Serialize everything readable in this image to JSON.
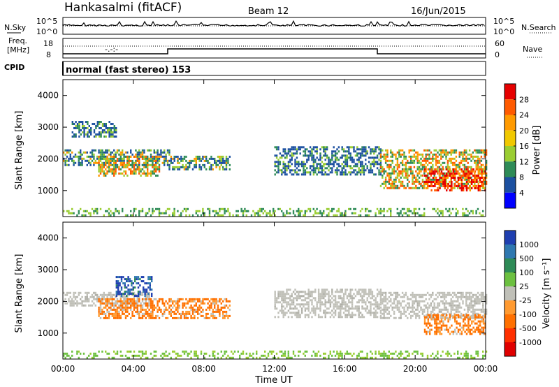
{
  "header": {
    "station": "Hankasalmi (fitACF)",
    "beam": "Beam 12",
    "date": "16/Jun/2015"
  },
  "panels": {
    "noise": {
      "left_label": "N.Sky",
      "right_label": "N.Search",
      "left_ticks": [
        "10^5",
        "10^0"
      ],
      "right_ticks": [
        "10^5",
        "10^0"
      ]
    },
    "freq": {
      "left_label_line1": "Freq.",
      "left_label_line2": "[MHz]",
      "left_ticks": [
        "18",
        "8"
      ],
      "right_label": "Nave",
      "right_ticks": [
        "60",
        "0"
      ]
    },
    "cpid": {
      "label": "CPID",
      "text": "normal (fast stereo) 153"
    }
  },
  "power_colorbar": {
    "label": "Power [dB]",
    "ticks": [
      "28",
      "24",
      "20",
      "16",
      "12",
      "8",
      "4"
    ],
    "colors": [
      "#e60000",
      "#ff5a00",
      "#ff9a00",
      "#f0c800",
      "#9acd32",
      "#2e8b57",
      "#1c50a0",
      "#0000ff"
    ]
  },
  "velocity_colorbar": {
    "label": "Velocity  [m s⁻¹]",
    "ticks": [
      "1000",
      "500",
      "100",
      "25",
      "-25",
      "-100",
      "-500",
      "-1000"
    ],
    "colors": [
      "#1f3fb0",
      "#2f78b0",
      "#2e8b57",
      "#6cc040",
      "#c0c0b8",
      "#ff9a30",
      "#ff7000",
      "#ff3000",
      "#e00000"
    ]
  },
  "chart_data": [
    {
      "type": "heatmap",
      "title": "",
      "xlabel": "",
      "ylabel": "Slant Range [km]",
      "ylim": [
        180,
        4500
      ],
      "yticks": [
        1000,
        2000,
        3000,
        4000
      ],
      "xlim": [
        0,
        24
      ],
      "variable": "Power [dB]",
      "echo_bands": [
        {
          "t0": 0.0,
          "t1": 6.0,
          "r0": 1800,
          "r1": 2300,
          "level": "medium"
        },
        {
          "t0": 2.0,
          "t1": 5.5,
          "r0": 1500,
          "r1": 2100,
          "level": "high"
        },
        {
          "t0": 0.5,
          "t1": 3.0,
          "r0": 2700,
          "r1": 3200,
          "level": "low"
        },
        {
          "t0": 6.0,
          "t1": 9.5,
          "r0": 1700,
          "r1": 2100,
          "level": "medium"
        },
        {
          "t0": 12.0,
          "t1": 18.0,
          "r0": 1500,
          "r1": 2400,
          "level": "low"
        },
        {
          "t0": 18.0,
          "t1": 24.0,
          "r0": 1100,
          "r1": 2300,
          "level": "high"
        },
        {
          "t0": 20.5,
          "t1": 24.0,
          "r0": 1000,
          "r1": 1700,
          "level": "very_high"
        },
        {
          "t0": 0.0,
          "t1": 24.0,
          "r0": 200,
          "r1": 450,
          "level": "ground_scatter"
        }
      ]
    },
    {
      "type": "heatmap",
      "title": "",
      "xlabel": "Time UT",
      "ylabel": "Slant Range [km]",
      "ylim": [
        180,
        4500
      ],
      "yticks": [
        1000,
        2000,
        3000,
        4000
      ],
      "xlim": [
        0,
        24
      ],
      "xticks": [
        "00:00",
        "04:00",
        "08:00",
        "12:00",
        "16:00",
        "20:00",
        "00:00"
      ],
      "variable": "Velocity [m s-1]",
      "echo_bands": [
        {
          "t0": 0.0,
          "t1": 5.0,
          "r0": 1900,
          "r1": 2300,
          "level": "-25..25 gray"
        },
        {
          "t0": 2.0,
          "t1": 9.5,
          "r0": 1500,
          "r1": 2100,
          "level": "-500..-100 orange"
        },
        {
          "t0": 3.0,
          "t1": 5.0,
          "r0": 2200,
          "r1": 2800,
          "level": "100..1000 blue"
        },
        {
          "t0": 12.0,
          "t1": 18.0,
          "r0": 1500,
          "r1": 2400,
          "level": "-25..25 gray"
        },
        {
          "t0": 18.0,
          "t1": 24.0,
          "r0": 1500,
          "r1": 2300,
          "level": "-25..25 gray"
        },
        {
          "t0": 20.5,
          "t1": 24.0,
          "r0": 1000,
          "r1": 1600,
          "level": "-500..-100 orange"
        },
        {
          "t0": 0.0,
          "t1": 24.0,
          "r0": 200,
          "r1": 450,
          "level": "25..100 green"
        }
      ]
    }
  ]
}
